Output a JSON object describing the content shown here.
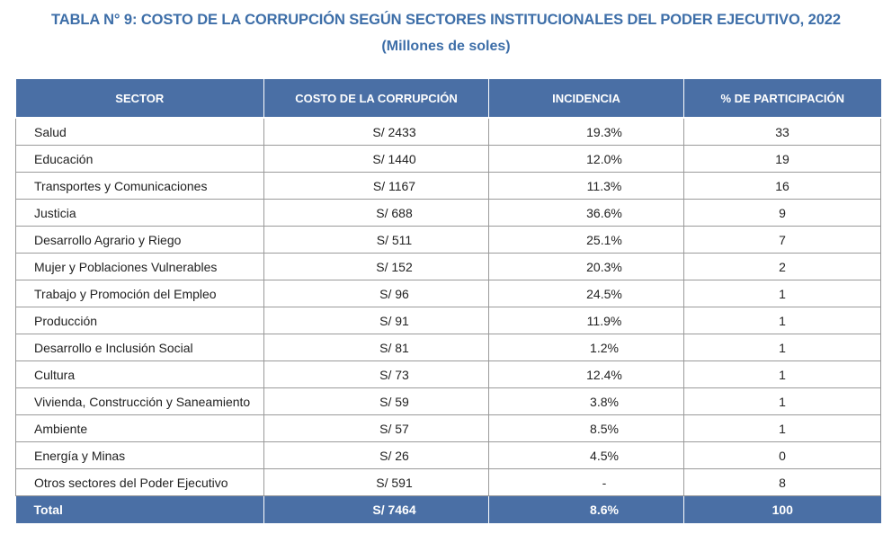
{
  "title": "TABLA N°  9: COSTO DE LA CORRUPCIÓN SEGÚN SECTORES INSTITUCIONALES DEL PODER EJECUTIVO, 2022",
  "subtitle": "(Millones de soles)",
  "headers": [
    "SECTOR",
    "COSTO DE LA CORRUPCIÓN",
    "INCIDENCIA",
    "% DE PARTICIPACIÓN"
  ],
  "rows": [
    {
      "sector": "Salud",
      "cost": "S/ 2433",
      "incidence": "19.3%",
      "share": "33"
    },
    {
      "sector": "Educación",
      "cost": "S/ 1440",
      "incidence": "12.0%",
      "share": "19"
    },
    {
      "sector": "Transportes y Comunicaciones",
      "cost": "S/ 1167",
      "incidence": "11.3%",
      "share": "16"
    },
    {
      "sector": "Justicia",
      "cost": "S/ 688",
      "incidence": "36.6%",
      "share": "9"
    },
    {
      "sector": "Desarrollo Agrario y Riego",
      "cost": "S/ 511",
      "incidence": "25.1%",
      "share": "7"
    },
    {
      "sector": "Mujer y Poblaciones Vulnerables",
      "cost": "S/ 152",
      "incidence": "20.3%",
      "share": "2"
    },
    {
      "sector": "Trabajo y Promoción del Empleo",
      "cost": "S/ 96",
      "incidence": "24.5%",
      "share": "1"
    },
    {
      "sector": "Producción",
      "cost": "S/ 91",
      "incidence": "11.9%",
      "share": "1"
    },
    {
      "sector": "Desarrollo e Inclusión Social",
      "cost": "S/ 81",
      "incidence": "1.2%",
      "share": "1"
    },
    {
      "sector": "Cultura",
      "cost": "S/ 73",
      "incidence": "12.4%",
      "share": "1"
    },
    {
      "sector": "Vivienda, Construcción y Saneamiento",
      "cost": "S/ 59",
      "incidence": "3.8%",
      "share": "1"
    },
    {
      "sector": "Ambiente",
      "cost": "S/ 57",
      "incidence": "8.5%",
      "share": "1"
    },
    {
      "sector": "Energía y Minas",
      "cost": "S/ 26",
      "incidence": "4.5%",
      "share": "0"
    },
    {
      "sector": "Otros sectores del Poder Ejecutivo",
      "cost": "S/ 591",
      "incidence": "-",
      "share": "8"
    }
  ],
  "total": {
    "sector": "Total",
    "cost": "S/ 7464",
    "incidence": "8.6%",
    "share": "100"
  },
  "colors": {
    "title": "#3d6ea8",
    "header_bg": "#4a6fa5",
    "header_text": "#ffffff"
  }
}
